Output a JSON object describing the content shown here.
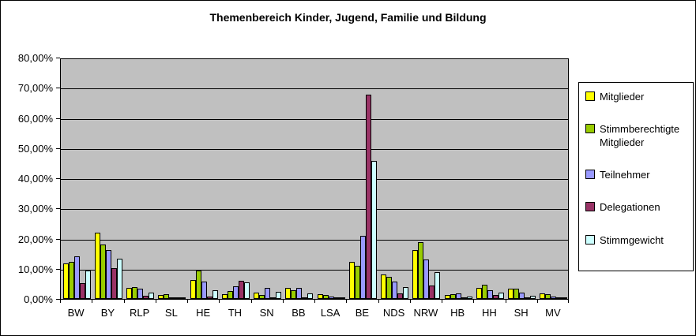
{
  "chart_data": {
    "type": "bar",
    "title": "Themenbereich Kinder, Jugend, Familie und Bildung",
    "categories": [
      "BW",
      "BY",
      "RLP",
      "SL",
      "HE",
      "TH",
      "SN",
      "BB",
      "LSA",
      "BE",
      "NDS",
      "NRW",
      "HB",
      "HH",
      "SH",
      "MV"
    ],
    "series": [
      {
        "name": "Mitglieder",
        "color": "#FFFF00",
        "values": [
          11.7,
          22.0,
          3.6,
          1.3,
          6.3,
          1.6,
          2.2,
          3.7,
          1.6,
          12.2,
          8.0,
          16.1,
          1.3,
          3.7,
          3.3,
          1.8
        ]
      },
      {
        "name": "Stimmberechtigte Mitglieder",
        "color": "#99CC00",
        "values": [
          12.3,
          18.1,
          3.9,
          1.7,
          9.3,
          2.5,
          1.3,
          2.8,
          1.4,
          10.9,
          7.4,
          18.9,
          1.5,
          4.8,
          3.3,
          1.5
        ]
      },
      {
        "name": "Teilnehmer",
        "color": "#9999FF",
        "values": [
          14.2,
          16.3,
          3.3,
          0.5,
          5.8,
          4.1,
          3.7,
          3.7,
          0.9,
          20.9,
          5.8,
          13.1,
          1.8,
          3.0,
          2.2,
          0.9
        ]
      },
      {
        "name": "Delegationen",
        "color": "#993366",
        "values": [
          5.2,
          10.2,
          1.0,
          0.3,
          0.8,
          6.1,
          0.4,
          0.2,
          0.1,
          67.7,
          1.8,
          4.5,
          0.1,
          1.3,
          0.1,
          0.3
        ]
      },
      {
        "name": "Stimmgewicht",
        "color": "#CCFFFF",
        "values": [
          9.4,
          13.3,
          2.1,
          0.2,
          3.0,
          5.4,
          2.3,
          1.8,
          0.4,
          45.8,
          3.9,
          8.9,
          0.8,
          2.2,
          1.0,
          0.1
        ]
      }
    ],
    "ylim": [
      0,
      80
    ],
    "y_tick_labels": [
      "80,00%",
      "70,00%",
      "60,00%",
      "50,00%",
      "40,00%",
      "30,00%",
      "20,00%",
      "10,00%",
      "0,00%"
    ],
    "grid": true,
    "legend_position": "right",
    "plot_bg": "#C0C0C0"
  }
}
